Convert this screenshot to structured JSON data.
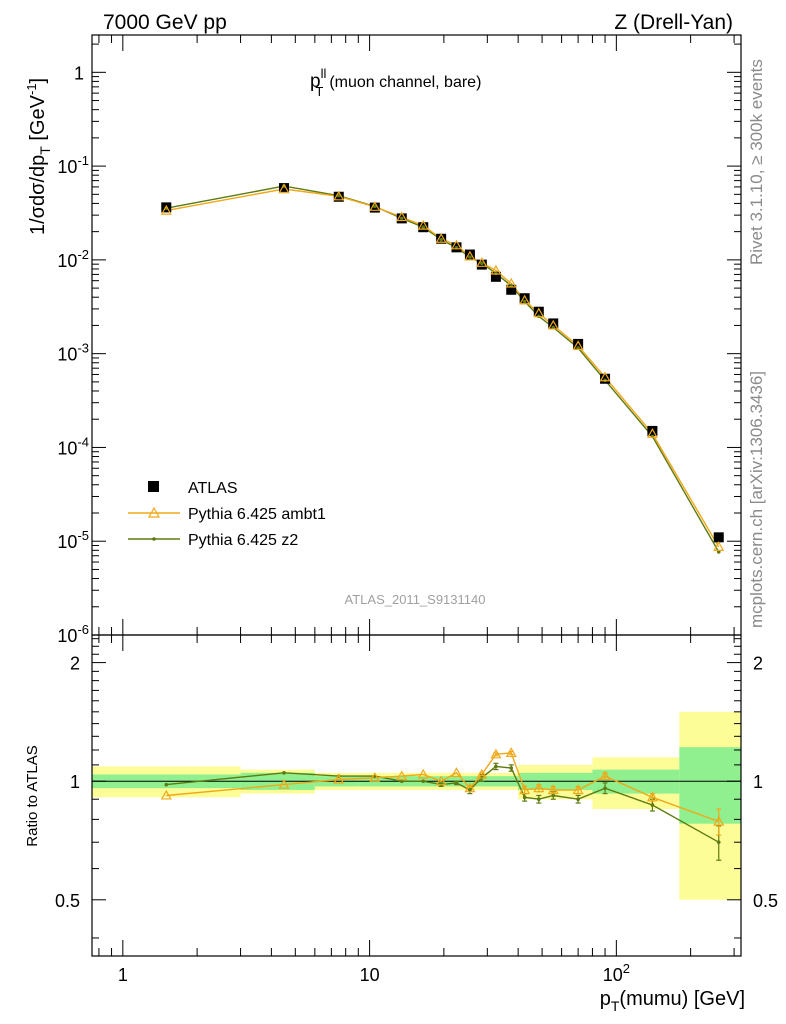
{
  "header": {
    "left": "7000 GeV pp",
    "right": "Z (Drell-Yan)"
  },
  "side_labels": {
    "rivet": "Rivet 3.1.10, ≥ 300k events",
    "mcplots": "mcplots.cern.ch [arXiv:1306.3436]"
  },
  "colors": {
    "ambt1": "#f0a818",
    "z2": "#5e7a10",
    "band_green": "#90f090",
    "band_yellow": "#fdfd98",
    "data": "#000000"
  },
  "chart_data": [
    {
      "type": "line",
      "panel": "main",
      "title": "p_T^ll (muon channel, bare)",
      "ylabel": "1/σdσ/dp_T [GeV^-1]",
      "xscale": "log",
      "yscale": "log",
      "xlim": [
        0.75,
        320
      ],
      "ylim": [
        1e-06,
        2.5
      ],
      "y_ticks": [
        "1",
        "10^-1",
        "10^-2",
        "10^-3",
        "10^-4",
        "10^-5",
        "10^-6"
      ],
      "watermark": "ATLAS_2011_S9131140",
      "legend_position": "bottom-left",
      "series": [
        {
          "name": "ATLAS",
          "marker": "square",
          "x": [
            1.5,
            4.5,
            7.5,
            10.5,
            13.5,
            16.5,
            19.5,
            22.5,
            25.5,
            28.5,
            32.5,
            37.5,
            42.5,
            48.5,
            55.5,
            70,
            90,
            140,
            260
          ],
          "y": [
            0.0363,
            0.0583,
            0.0471,
            0.0361,
            0.0277,
            0.0223,
            0.0168,
            0.0136,
            0.0114,
            0.0089,
            0.0066,
            0.0048,
            0.0039,
            0.0028,
            0.0021,
            0.00127,
            0.00054,
            0.00015,
            1.1e-05
          ]
        },
        {
          "name": "Pythia 6.425 ambt1",
          "marker": "triangle",
          "x": [
            1.5,
            4.5,
            7.5,
            10.5,
            13.5,
            16.5,
            19.5,
            22.5,
            25.5,
            28.5,
            32.5,
            37.5,
            42.5,
            48.5,
            55.5,
            70,
            90,
            140,
            260
          ],
          "y": [
            0.0335,
            0.057,
            0.0476,
            0.0368,
            0.0286,
            0.0232,
            0.0168,
            0.0143,
            0.0109,
            0.0093,
            0.0077,
            0.0056,
            0.0037,
            0.0027,
            0.002,
            0.00121,
            0.00056,
            0.00014,
            8.7e-06
          ]
        },
        {
          "name": "Pythia 6.425 z2",
          "marker": "dot",
          "x": [
            1.5,
            4.5,
            7.5,
            10.5,
            13.5,
            16.5,
            19.5,
            22.5,
            25.5,
            28.5,
            32.5,
            37.5,
            42.5,
            48.5,
            55.5,
            70,
            90,
            140,
            260
          ],
          "y": [
            0.0356,
            0.0612,
            0.0484,
            0.0372,
            0.0277,
            0.0223,
            0.0164,
            0.0135,
            0.0107,
            0.0092,
            0.0072,
            0.0053,
            0.0036,
            0.0025,
            0.0019,
            0.00115,
            0.00052,
            0.000131,
            7.7e-06
          ]
        }
      ]
    },
    {
      "type": "line",
      "panel": "ratio",
      "ylabel": "Ratio to ATLAS",
      "xlabel": "p_T(mumu) [GeV]",
      "xscale": "log",
      "xlim": [
        0.75,
        320
      ],
      "ylim": [
        0.36,
        2.35
      ],
      "x_ticks": [
        "1",
        "10",
        "10^2"
      ],
      "y_ticks": [
        "0.5",
        "1",
        "2"
      ],
      "bins": [
        {
          "lo": 0.75,
          "hi": 3,
          "green": 0.04,
          "yellow": 0.09
        },
        {
          "lo": 3,
          "hi": 6,
          "green": 0.05,
          "yellow": 0.07
        },
        {
          "lo": 6,
          "hi": 9,
          "green": 0.03,
          "yellow": 0.05
        },
        {
          "lo": 9,
          "hi": 40,
          "green": 0.03,
          "yellow": 0.05
        },
        {
          "lo": 40,
          "hi": 80,
          "green": 0.05,
          "yellow": 0.1
        },
        {
          "lo": 80,
          "hi": 180,
          "green": 0.07,
          "yellow": 0.15
        },
        {
          "lo": 180,
          "hi": 320,
          "green": 0.22,
          "yellow": 0.5
        }
      ],
      "series": [
        {
          "name": "Pythia 6.425 ambt1",
          "x": [
            1.5,
            4.5,
            7.5,
            10.5,
            13.5,
            16.5,
            19.5,
            22.5,
            25.5,
            28.5,
            32.5,
            37.5,
            42.5,
            48.5,
            55.5,
            70,
            90,
            140,
            260
          ],
          "y": [
            0.92,
            0.98,
            1.01,
            1.02,
            1.03,
            1.04,
            1.0,
            1.05,
            0.96,
            1.04,
            1.17,
            1.18,
            0.95,
            0.96,
            0.95,
            0.95,
            1.03,
            0.91,
            0.79
          ],
          "err": [
            0,
            0,
            0,
            0,
            0,
            0,
            0,
            0,
            0.01,
            0.01,
            0.01,
            0.01,
            0.02,
            0.02,
            0.02,
            0.02,
            0.02,
            0.02,
            0.06
          ]
        },
        {
          "name": "Pythia 6.425 z2",
          "x": [
            1.5,
            4.5,
            7.5,
            10.5,
            13.5,
            16.5,
            19.5,
            22.5,
            25.5,
            28.5,
            32.5,
            37.5,
            42.5,
            48.5,
            55.5,
            70,
            90,
            140,
            260
          ],
          "y": [
            0.98,
            1.05,
            1.03,
            1.03,
            1.0,
            1.0,
            0.98,
            0.99,
            0.95,
            1.02,
            1.09,
            1.08,
            0.91,
            0.9,
            0.92,
            0.9,
            0.96,
            0.87,
            0.7
          ],
          "err": [
            0,
            0,
            0,
            0,
            0,
            0,
            0.01,
            0.01,
            0.02,
            0.02,
            0.02,
            0.02,
            0.02,
            0.02,
            0.02,
            0.02,
            0.03,
            0.03,
            0.07
          ]
        }
      ]
    }
  ]
}
